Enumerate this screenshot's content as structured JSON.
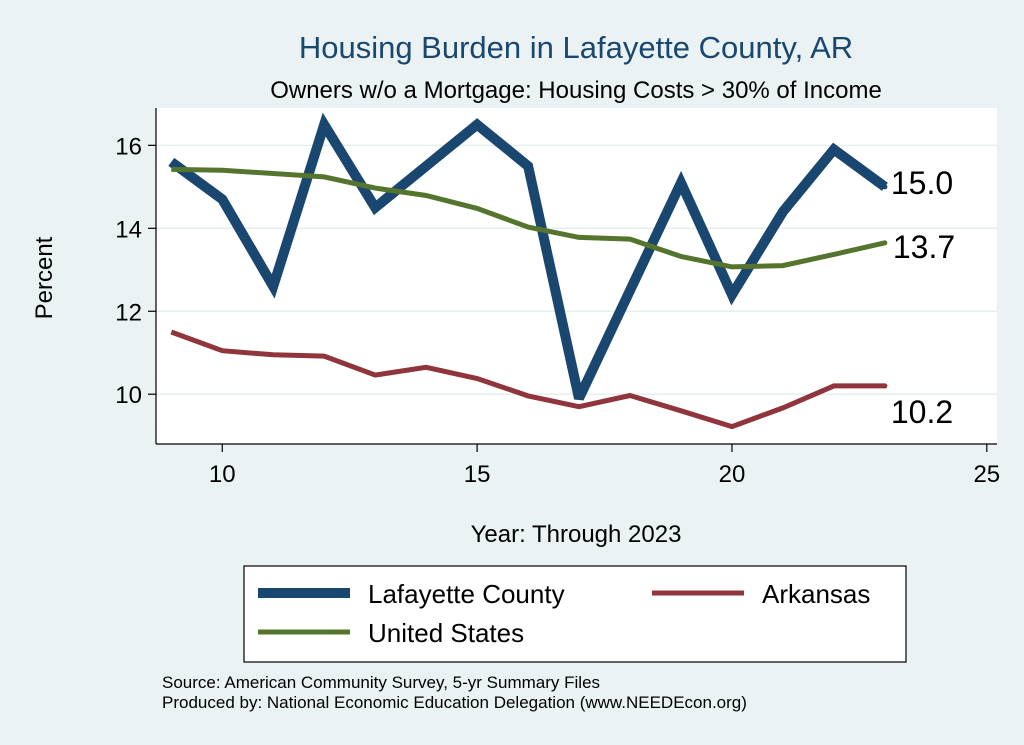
{
  "chart_data": {
    "type": "line",
    "title": "Housing Burden in Lafayette County, AR",
    "subtitle": "Owners w/o a Mortgage: Housing Costs > 30% of Income",
    "xlabel": "Year: Through 2023",
    "ylabel": "Percent",
    "xlim": [
      8.7,
      25.2
    ],
    "ylim": [
      8.8,
      16.9
    ],
    "xticks": [
      10,
      15,
      20,
      25
    ],
    "yticks": [
      10,
      12,
      14,
      16
    ],
    "grid": true,
    "legend": "bottom",
    "x": [
      9,
      10,
      11,
      12,
      13,
      14,
      15,
      16,
      17,
      18,
      19,
      20,
      21,
      22,
      23
    ],
    "series": [
      {
        "name": "Lafayette County",
        "color": "#1a476f",
        "values": [
          15.6,
          14.7,
          12.6,
          16.5,
          14.5,
          15.5,
          16.5,
          15.5,
          9.9,
          12.5,
          15.1,
          12.4,
          14.4,
          15.9,
          15.0
        ],
        "end_label": "15.0"
      },
      {
        "name": "Arkansas",
        "color": "#90353b",
        "values": [
          11.5,
          11.05,
          10.95,
          10.92,
          10.46,
          10.65,
          10.38,
          9.96,
          9.7,
          9.97,
          9.6,
          9.22,
          9.67,
          10.2,
          10.2
        ],
        "end_label": "10.2"
      },
      {
        "name": "United States",
        "color": "#55752f",
        "values": [
          15.42,
          15.4,
          15.32,
          15.24,
          14.97,
          14.79,
          14.48,
          14.03,
          13.78,
          13.74,
          13.32,
          13.07,
          13.1,
          13.37,
          13.65
        ],
        "end_label": "13.7"
      }
    ]
  },
  "source_lines": [
    "Source: American Community Survey, 5-yr Summary Files",
    "Produced by: National Economic Education Delegation (www.NEEDEcon.org)"
  ]
}
